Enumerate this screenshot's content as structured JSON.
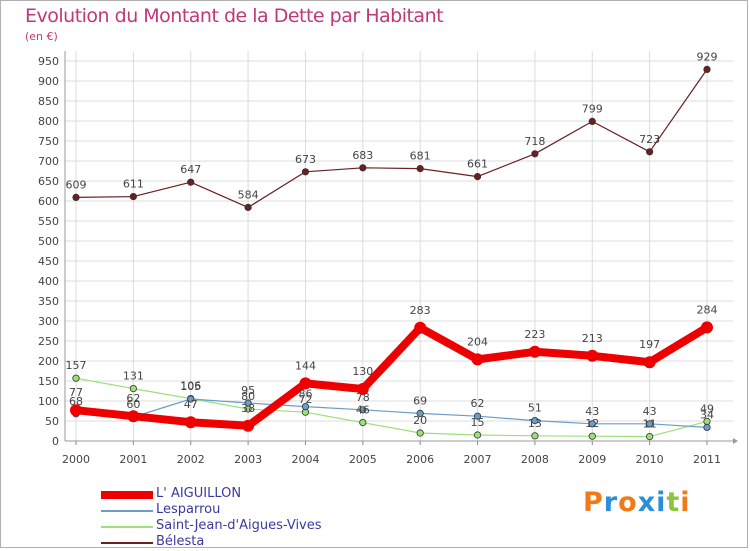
{
  "title": "Evolution du Montant de la Dette par Habitant",
  "unit": "(en €)",
  "logo": [
    "P",
    "r",
    "o",
    "x",
    "i",
    "t",
    "i"
  ],
  "logo_colors": [
    "#f07a1a",
    "#2a8fd8",
    "#f07a1a",
    "#2a8fd8",
    "#2a8fd8",
    "#8cc63f",
    "#f07a1a"
  ],
  "chart_data": {
    "type": "line",
    "x": [
      "2000",
      "2001",
      "2002",
      "2003",
      "2004",
      "2005",
      "2006",
      "2007",
      "2008",
      "2009",
      "2010",
      "2011"
    ],
    "ylim": [
      0,
      950
    ],
    "yticks": [
      0,
      50,
      100,
      150,
      200,
      250,
      300,
      350,
      400,
      450,
      500,
      550,
      600,
      650,
      700,
      750,
      800,
      850,
      900,
      950
    ],
    "grid": true,
    "legend_position": "bottom-left",
    "series": [
      {
        "name": "L' AIGUILLON",
        "color": "#ee0000",
        "values": [
          77,
          62,
          47,
          38,
          144,
          130,
          283,
          204,
          223,
          213,
          197,
          284
        ]
      },
      {
        "name": "Lesparrou",
        "color": "#6a9ec8",
        "values": [
          68,
          60,
          105,
          95,
          86,
          78,
          69,
          62,
          51,
          43,
          43,
          34
        ]
      },
      {
        "name": "Saint-Jean-d'Aigues-Vives",
        "color": "#9de07a",
        "values": [
          157,
          131,
          106,
          80,
          72,
          46,
          20,
          15,
          13,
          12,
          11,
          49
        ]
      },
      {
        "name": "Bélesta",
        "color": "#6b1f1f",
        "values": [
          609,
          611,
          647,
          584,
          673,
          683,
          681,
          661,
          718,
          799,
          723,
          929
        ]
      }
    ]
  }
}
